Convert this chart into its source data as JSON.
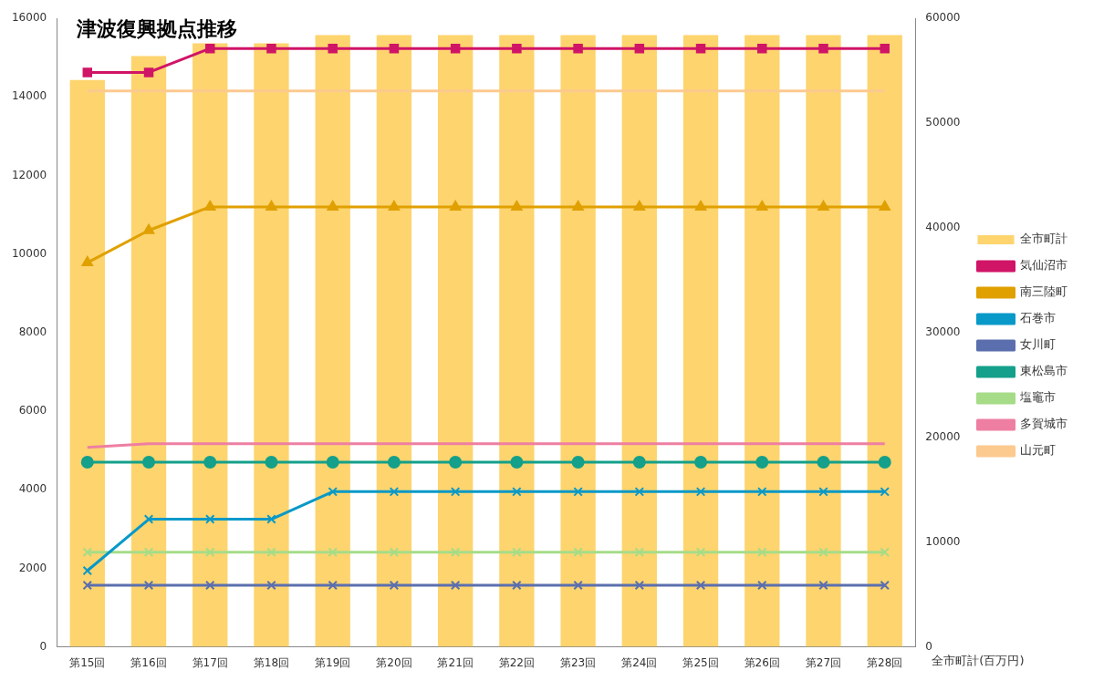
{
  "chart_data": {
    "type": "line",
    "title": "津波復興拠点推移",
    "y2label": "全市町計(百万円)",
    "categories": [
      "第15回",
      "第16回",
      "第17回",
      "第18回",
      "第19回",
      "第20回",
      "第21回",
      "第22回",
      "第23回",
      "第24回",
      "第25回",
      "第26回",
      "第27回",
      "第28回"
    ],
    "series": [
      {
        "name": "全市町計",
        "type": "bar",
        "axis": "y2",
        "color": "#fdd46e",
        "values": [
          54100,
          56400,
          57600,
          57600,
          58400,
          58400,
          58400,
          58400,
          58400,
          58400,
          58400,
          58400,
          58400,
          58400
        ]
      },
      {
        "name": "気仙沼市",
        "color": "#d01466",
        "marker": "square",
        "values": [
          14620,
          14620,
          15230,
          15230,
          15230,
          15230,
          15230,
          15230,
          15230,
          15230,
          15230,
          15230,
          15230,
          15230
        ]
      },
      {
        "name": "南三陸町",
        "color": "#e0a000",
        "marker": "triangle",
        "values": [
          9780,
          10600,
          11200,
          11200,
          11200,
          11200,
          11200,
          11200,
          11200,
          11200,
          11200,
          11200,
          11200,
          11200
        ]
      },
      {
        "name": "石巻市",
        "color": "#0899c8",
        "marker": "cross",
        "values": [
          1940,
          3250,
          3250,
          3250,
          3950,
          3950,
          3950,
          3950,
          3950,
          3950,
          3950,
          3950,
          3950,
          3950
        ]
      },
      {
        "name": "女川町",
        "color": "#5b6fae",
        "marker": "cross",
        "values": [
          1570,
          1570,
          1570,
          1570,
          1570,
          1570,
          1570,
          1570,
          1570,
          1570,
          1570,
          1570,
          1570,
          1570
        ]
      },
      {
        "name": "東松島市",
        "color": "#14a08a",
        "marker": "circle",
        "values": [
          4700,
          4700,
          4700,
          4700,
          4700,
          4700,
          4700,
          4700,
          4700,
          4700,
          4700,
          4700,
          4700,
          4700
        ]
      },
      {
        "name": "塩竈市",
        "color": "#a6dc88",
        "marker": "cross",
        "values": [
          2410,
          2410,
          2410,
          2410,
          2410,
          2410,
          2410,
          2410,
          2410,
          2410,
          2410,
          2410,
          2410,
          2410
        ]
      },
      {
        "name": "多賀城市",
        "color": "#ee7fa2",
        "marker": "none",
        "values": [
          5080,
          5170,
          5170,
          5170,
          5170,
          5170,
          5170,
          5170,
          5170,
          5170,
          5170,
          5170,
          5170,
          5170
        ]
      },
      {
        "name": "山元町",
        "color": "#fcc98e",
        "marker": "none",
        "values": [
          14150,
          14150,
          14150,
          14150,
          14150,
          14150,
          14150,
          14150,
          14150,
          14150,
          14150,
          14150,
          14150,
          14150
        ]
      }
    ],
    "ylim": [
      0,
      16000
    ],
    "yticks": [
      0,
      2000,
      4000,
      6000,
      8000,
      10000,
      12000,
      14000,
      16000
    ],
    "y2lim": [
      0,
      60000
    ],
    "y2ticks": [
      0,
      10000,
      20000,
      30000,
      40000,
      50000,
      60000
    ],
    "grid": false,
    "legend": "right"
  }
}
